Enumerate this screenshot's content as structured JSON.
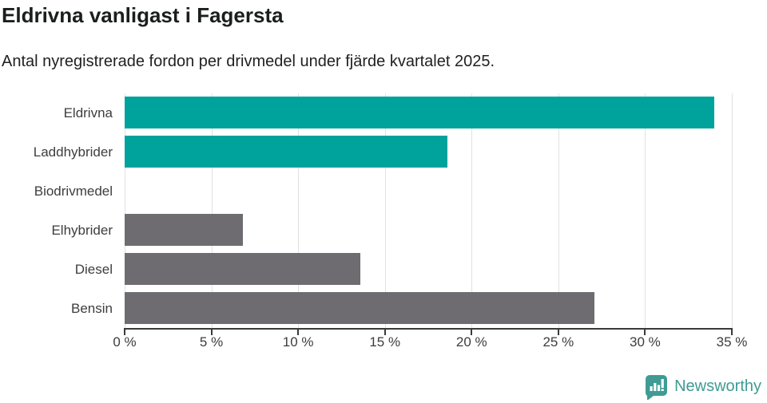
{
  "header": {
    "title": "Eldrivna vanligast i Fagersta",
    "subtitle": "Antal nyregistrerade fordon per drivmedel under fjärde kvartalet 2025."
  },
  "chart_data": {
    "type": "bar",
    "orientation": "horizontal",
    "title": "Eldrivna vanligast i Fagersta",
    "subtitle": "Antal nyregistrerade fordon per drivmedel under fjärde kvartalet 2025.",
    "categories": [
      "Eldrivna",
      "Laddhybrider",
      "Biodrivmedel",
      "Elhybrider",
      "Diesel",
      "Bensin"
    ],
    "values": [
      34,
      18.6,
      0,
      6.8,
      13.6,
      27.1
    ],
    "unit": "%",
    "bar_colors": [
      "#00a39c",
      "#00a39c",
      "#6e6c71",
      "#6e6c71",
      "#6e6c71",
      "#6e6c71"
    ],
    "highlight_color": "#00a39c",
    "default_color": "#6e6c71",
    "xlim": [
      0,
      35
    ],
    "x_ticks": [
      0,
      5,
      10,
      15,
      20,
      25,
      30,
      35
    ],
    "x_tick_labels": [
      "0 %",
      "5 %",
      "10 %",
      "15 %",
      "20 %",
      "25 %",
      "30 %",
      "35 %"
    ],
    "grid": "vertical",
    "grid_color": "#e1e1e1",
    "axis_color": "#3a3a3a",
    "legend": "none"
  },
  "footer": {
    "brand": "Newsworthy",
    "brand_color": "#3f9b94",
    "logo_icon": "bar-chart-speech-bubble-icon"
  }
}
